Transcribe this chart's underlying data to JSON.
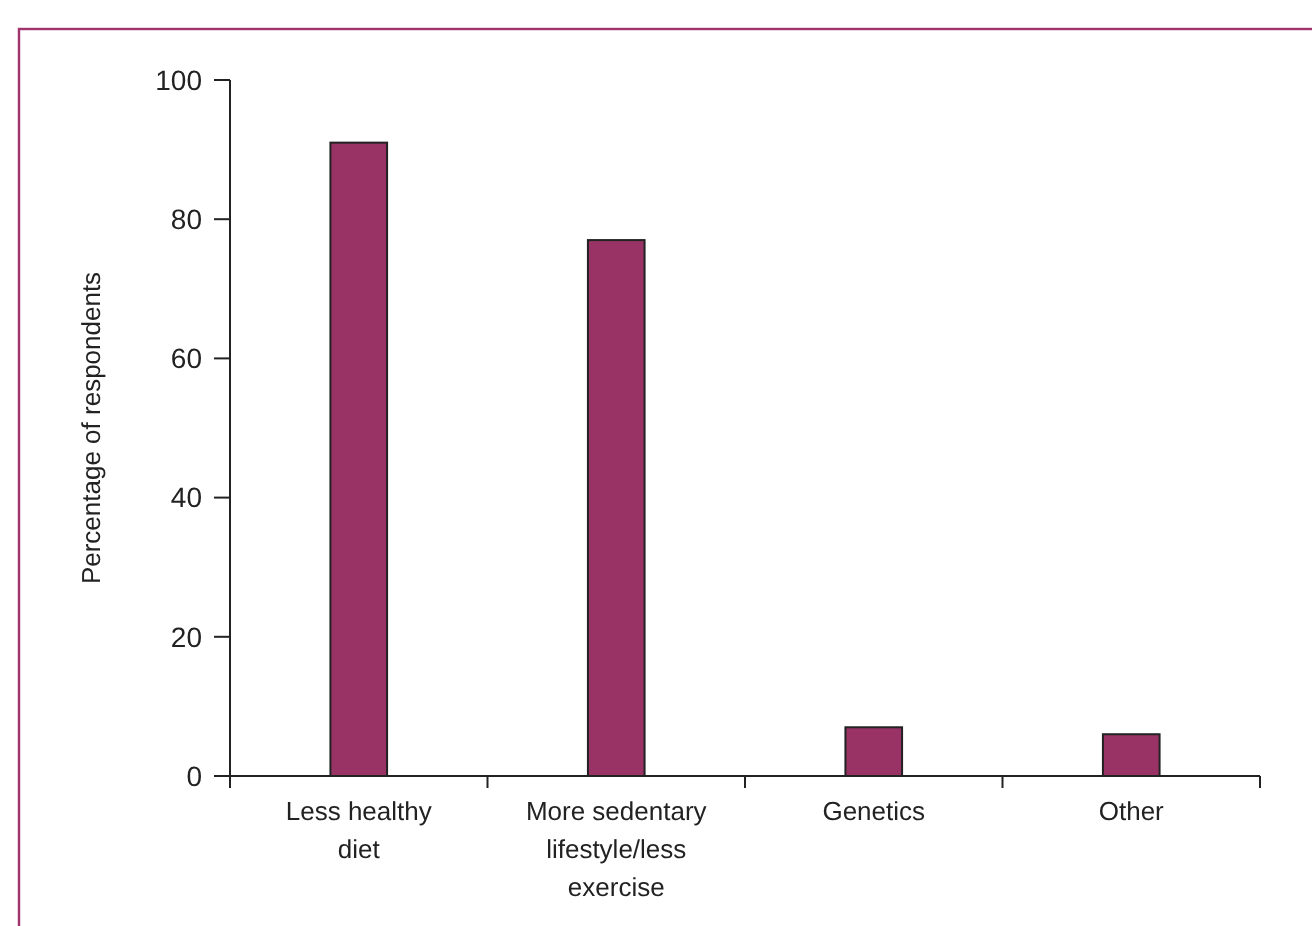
{
  "chart_data": {
    "type": "bar",
    "ylabel": "Percentage of respondents",
    "categories": [
      "Less healthy diet",
      "More sedentary lifestyle/less exercise",
      "Genetics",
      "Other"
    ],
    "values": [
      91,
      77,
      7,
      6
    ],
    "color": "#993366",
    "ylim": [
      0,
      100
    ],
    "yticks": [
      0,
      20,
      40,
      60,
      80,
      100
    ],
    "grid": false
  }
}
